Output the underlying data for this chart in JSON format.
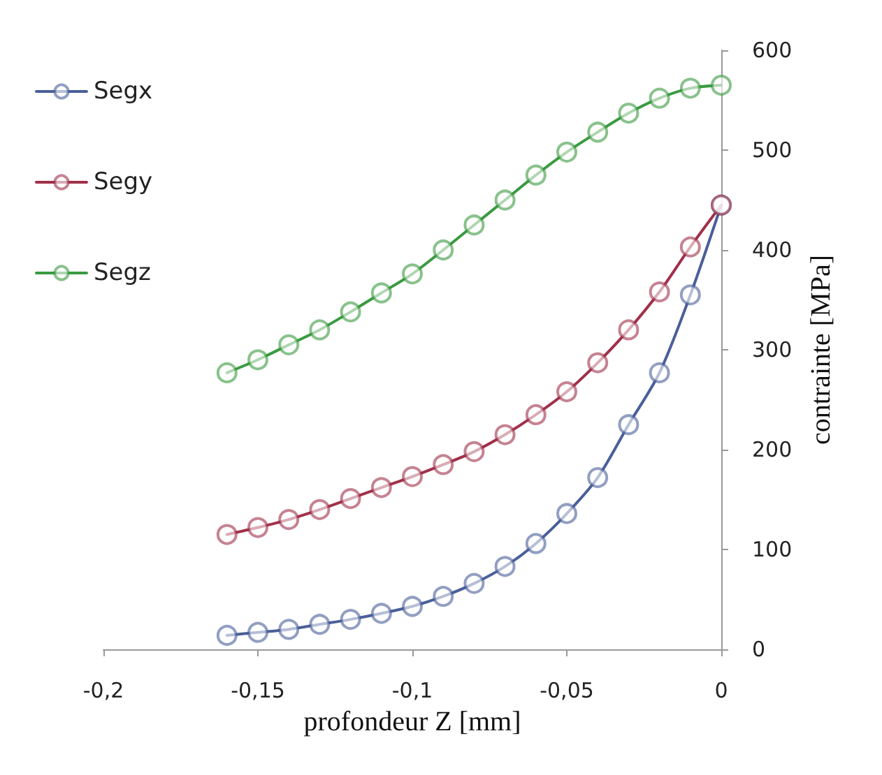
{
  "chart_data": {
    "type": "line",
    "xlabel": "profondeur Z [mm]",
    "ylabel": "contrainte [MPa]",
    "x": [
      -0.16,
      -0.15,
      -0.14,
      -0.13,
      -0.12,
      -0.11,
      -0.1,
      -0.09,
      -0.08,
      -0.07,
      -0.06,
      -0.05,
      -0.04,
      -0.03,
      -0.02,
      -0.01,
      0
    ],
    "series": [
      {
        "name": "Segx",
        "color": "#4a5f9a",
        "values": [
          14,
          17,
          20,
          25,
          30,
          36,
          43,
          53,
          66,
          83,
          106,
          136,
          172,
          225,
          277,
          355,
          445
        ]
      },
      {
        "name": "Segy",
        "color": "#a0304a",
        "values": [
          115,
          122,
          130,
          140,
          151,
          162,
          173,
          185,
          198,
          215,
          235,
          258,
          287,
          320,
          358,
          403,
          445
        ]
      },
      {
        "name": "Segz",
        "color": "#3a9a40",
        "values": [
          277,
          290,
          305,
          320,
          338,
          357,
          376,
          400,
          425,
          450,
          475,
          498,
          518,
          537,
          552,
          562,
          565
        ]
      }
    ],
    "xlim": [
      -0.2,
      0
    ],
    "xticks": [
      {
        "value": -0.2,
        "label": "-0,2"
      },
      {
        "value": -0.15,
        "label": "-0,15"
      },
      {
        "value": -0.1,
        "label": "-0,1"
      },
      {
        "value": -0.05,
        "label": "-0,05"
      },
      {
        "value": 0,
        "label": "0"
      }
    ],
    "ylim": [
      0,
      600
    ],
    "yticks": [
      0,
      100,
      200,
      300,
      400,
      500,
      600
    ],
    "grid": false,
    "legend": "top left",
    "marker": "circle",
    "line_style": "solid"
  }
}
